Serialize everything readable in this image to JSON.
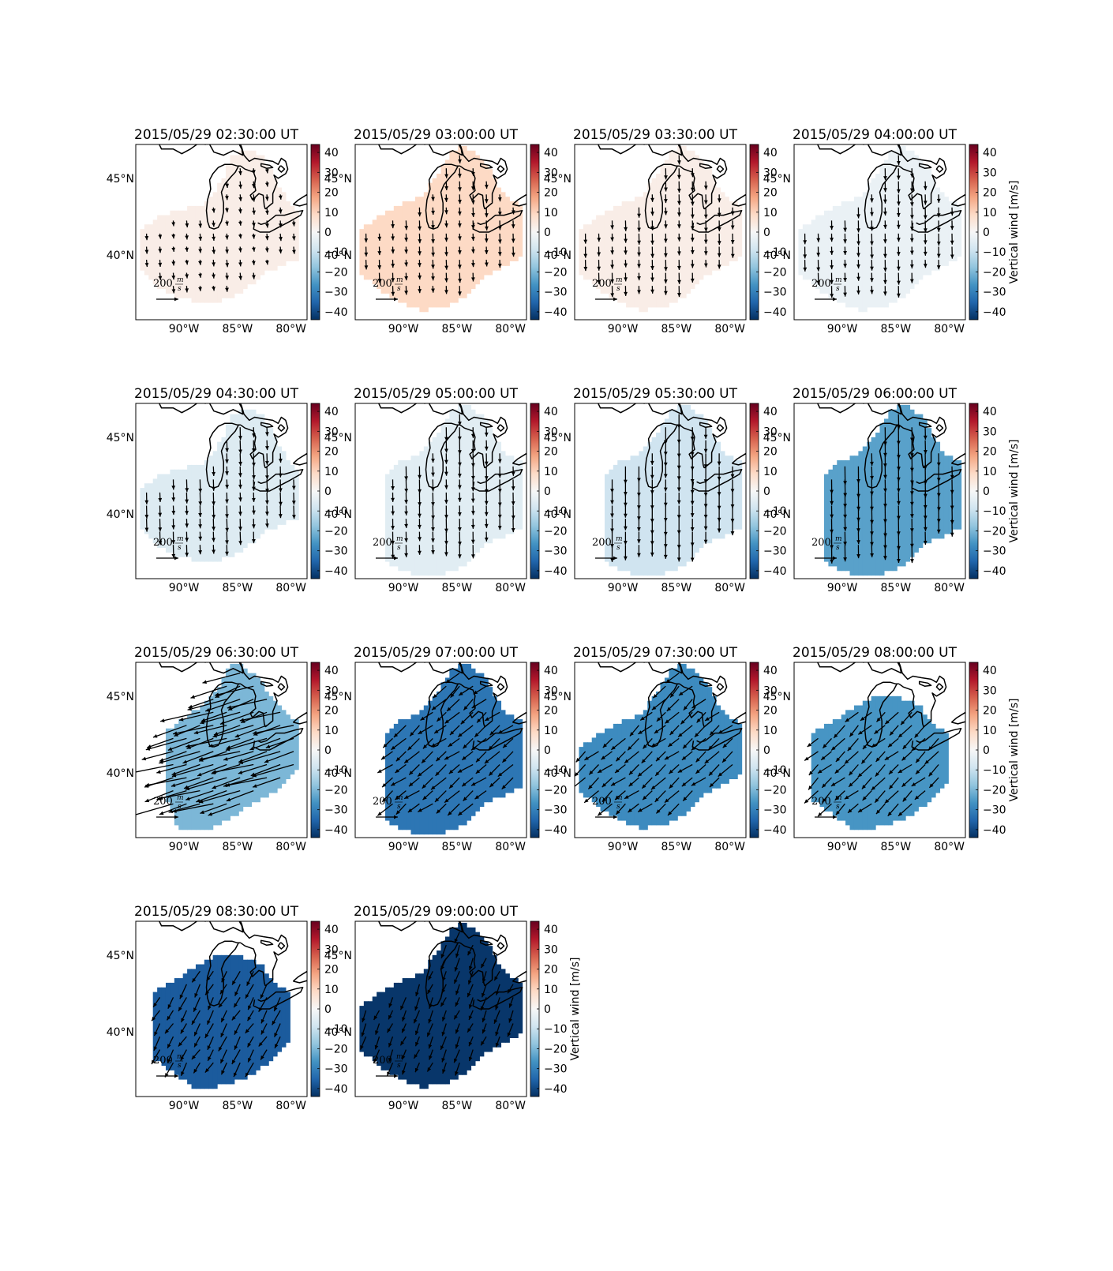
{
  "figure": {
    "map_region": {
      "lon_range": [
        -94.5,
        -78.5
      ],
      "lat_range": [
        35.8,
        47.2
      ]
    },
    "colorbar": {
      "colormap": "RdBu_r",
      "range": [
        -44,
        44
      ],
      "ticks": [
        40,
        30,
        20,
        10,
        0,
        -10,
        -20,
        -30,
        -40
      ],
      "tick_labels": [
        "40",
        "30",
        "20",
        "10",
        "0",
        "−10",
        "−20",
        "−30",
        "−40"
      ],
      "label": "Vertical wind [m/s]"
    },
    "lat_ticks": [
      {
        "value": 45,
        "label": "45°N"
      },
      {
        "value": 40,
        "label": "40°N"
      }
    ],
    "lon_ticks": [
      {
        "value": -90,
        "label": "90°W"
      },
      {
        "value": -85,
        "label": "85°W"
      },
      {
        "value": -80,
        "label": "80°W"
      }
    ],
    "scale_arrow": {
      "value": 200,
      "label": "200",
      "unit_num": "m",
      "unit_den": "s"
    },
    "colors": {
      "coastline": "#000000",
      "frame": "#000000",
      "arrow": "#000000"
    }
  },
  "chart_data": {
    "type": "heatmap",
    "description_kind": "small-multiple maps of vertical wind (color) with horizontal wind vectors",
    "panels": [
      {
        "title": "2015/05/29 02:30:00 UT",
        "vertical_wind": 3,
        "footprint": "A",
        "wind_u": 5,
        "wind_v": -55,
        "colorbar_label_visible": false
      },
      {
        "title": "2015/05/29 03:00:00 UT",
        "vertical_wind": 9,
        "footprint": "B",
        "wind_u": 3,
        "wind_v": -75,
        "colorbar_label_visible": false
      },
      {
        "title": "2015/05/29 03:30:00 UT",
        "vertical_wind": 3,
        "footprint": "B",
        "wind_u": 2,
        "wind_v": -85,
        "colorbar_label_visible": false
      },
      {
        "title": "2015/05/29 04:00:00 UT",
        "vertical_wind": -3,
        "footprint": "B",
        "wind_u": 2,
        "wind_v": -90,
        "colorbar_label_visible": true
      },
      {
        "title": "2015/05/29 04:30:00 UT",
        "vertical_wind": -6,
        "footprint": "A",
        "wind_u": 3,
        "wind_v": -100,
        "colorbar_label_visible": false
      },
      {
        "title": "2015/05/29 05:00:00 UT",
        "vertical_wind": -5,
        "footprint": "C",
        "wind_u": 2,
        "wind_v": -105,
        "colorbar_label_visible": false
      },
      {
        "title": "2015/05/29 05:30:00 UT",
        "vertical_wind": -9,
        "footprint": "C",
        "wind_u": 0,
        "wind_v": -130,
        "colorbar_label_visible": false
      },
      {
        "title": "2015/05/29 06:00:00 UT",
        "vertical_wind": -24,
        "footprint": "C",
        "wind_u": 2,
        "wind_v": -140,
        "colorbar_label_visible": true
      },
      {
        "title": "2015/05/29 06:30:00 UT",
        "vertical_wind": -20,
        "footprint": "D",
        "wind_u": -300,
        "wind_v": -90,
        "colorbar_label_visible": false
      },
      {
        "title": "2015/05/29 07:00:00 UT",
        "vertical_wind": -32,
        "footprint": "C",
        "wind_u": -110,
        "wind_v": -90,
        "colorbar_label_visible": false
      },
      {
        "title": "2015/05/29 07:30:00 UT",
        "vertical_wind": -28,
        "footprint": "B",
        "wind_u": -105,
        "wind_v": -90,
        "colorbar_label_visible": false
      },
      {
        "title": "2015/05/29 08:00:00 UT",
        "vertical_wind": -26,
        "footprint": "E",
        "wind_u": -100,
        "wind_v": -95,
        "colorbar_label_visible": true
      },
      {
        "title": "2015/05/29 08:30:00 UT",
        "vertical_wind": -37,
        "footprint": "E",
        "wind_u": -60,
        "wind_v": -110,
        "colorbar_label_visible": false
      },
      {
        "title": "2015/05/29 09:00:00 UT",
        "vertical_wind": -43,
        "footprint": "B",
        "wind_u": -40,
        "wind_v": -100,
        "colorbar_label_visible": true
      }
    ]
  }
}
